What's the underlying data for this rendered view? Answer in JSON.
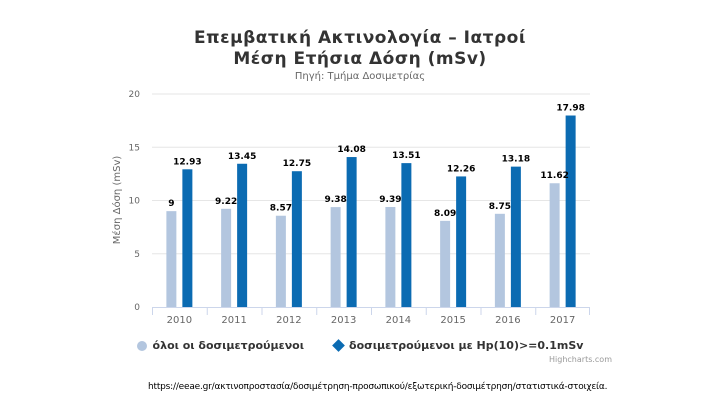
{
  "title_line1": "Επεμβατική Ακτινολογία – Ιατροί",
  "title_line2": "Μέση Ετήσια Δόση (mSv)",
  "subtitle": "Πηγή: Τμήμα Δοσιμετρίας",
  "credits": "Highcharts.com",
  "source_url": "https://eeae.gr/ακτινοπροστασία/δοσιμέτρηση-προσωπικού/εξωτερική-δοσιμέτρηση/στατιστικά-στοιχεία.",
  "colors": {
    "series1": "#b3c6df",
    "series2": "#0b6bb2"
  },
  "chart_data": {
    "type": "bar",
    "categories": [
      "2010",
      "2011",
      "2012",
      "2013",
      "2014",
      "2015",
      "2016",
      "2017"
    ],
    "series": [
      {
        "name": "όλοι οι δοσιμετρούμενοι",
        "values": [
          9,
          9.22,
          8.57,
          9.38,
          9.39,
          8.09,
          8.75,
          11.62
        ],
        "labels": [
          "9",
          "9.22",
          "8.57",
          "9.38",
          "9.39",
          "8.09",
          "8.75",
          "11.62"
        ]
      },
      {
        "name": "δοσιμετρούμενοι με Hp(10)>=0.1mSv",
        "values": [
          12.93,
          13.45,
          12.75,
          14.08,
          13.51,
          12.26,
          13.18,
          17.98
        ],
        "labels": [
          "12.93",
          "13.45",
          "12.75",
          "14.08",
          "13.51",
          "12.26",
          "13.18",
          "17.98"
        ]
      }
    ],
    "ylabel": "Μέση Δόση (mSv)",
    "xlabel": "",
    "ylim": [
      0,
      20
    ],
    "yticks": [
      "0",
      "5",
      "10",
      "15",
      "20"
    ],
    "grid": true,
    "legend_position": "bottom"
  }
}
